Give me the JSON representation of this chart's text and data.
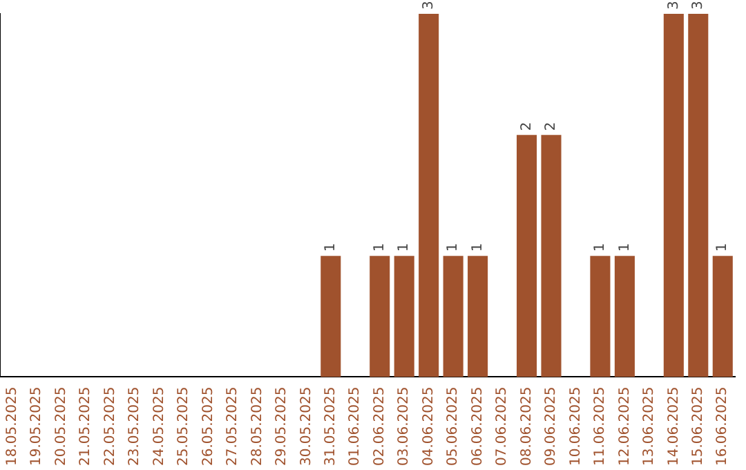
{
  "chart_data": {
    "type": "bar",
    "categories": [
      "18.05.2025",
      "19.05.2025",
      "20.05.2025",
      "21.05.2025",
      "22.05.2025",
      "23.05.2025",
      "24.05.2025",
      "25.05.2025",
      "26.05.2025",
      "27.05.2025",
      "28.05.2025",
      "29.05.2025",
      "30.05.2025",
      "31.05.2025",
      "01.06.2025",
      "02.06.2025",
      "03.06.2025",
      "04.06.2025",
      "05.06.2025",
      "06.06.2025",
      "07.06.2025",
      "08.06.2025",
      "09.06.2025",
      "10.06.2025",
      "11.06.2025",
      "12.06.2025",
      "13.06.2025",
      "14.06.2025",
      "15.06.2025",
      "16.06.2025"
    ],
    "values": [
      null,
      null,
      null,
      null,
      null,
      null,
      null,
      null,
      null,
      null,
      null,
      null,
      null,
      1,
      null,
      1,
      1,
      3,
      1,
      1,
      null,
      2,
      2,
      null,
      1,
      1,
      null,
      3,
      3,
      1
    ],
    "value_labels": [
      null,
      null,
      null,
      null,
      null,
      null,
      null,
      null,
      null,
      null,
      null,
      null,
      null,
      "1",
      null,
      "1",
      "1",
      "3",
      "1",
      "1",
      null,
      "2",
      "2",
      null,
      "1",
      "1",
      null,
      "3",
      "3",
      "1"
    ],
    "color": "#a0522d",
    "tick_labels": "x",
    "grid": false,
    "legend": false
  }
}
